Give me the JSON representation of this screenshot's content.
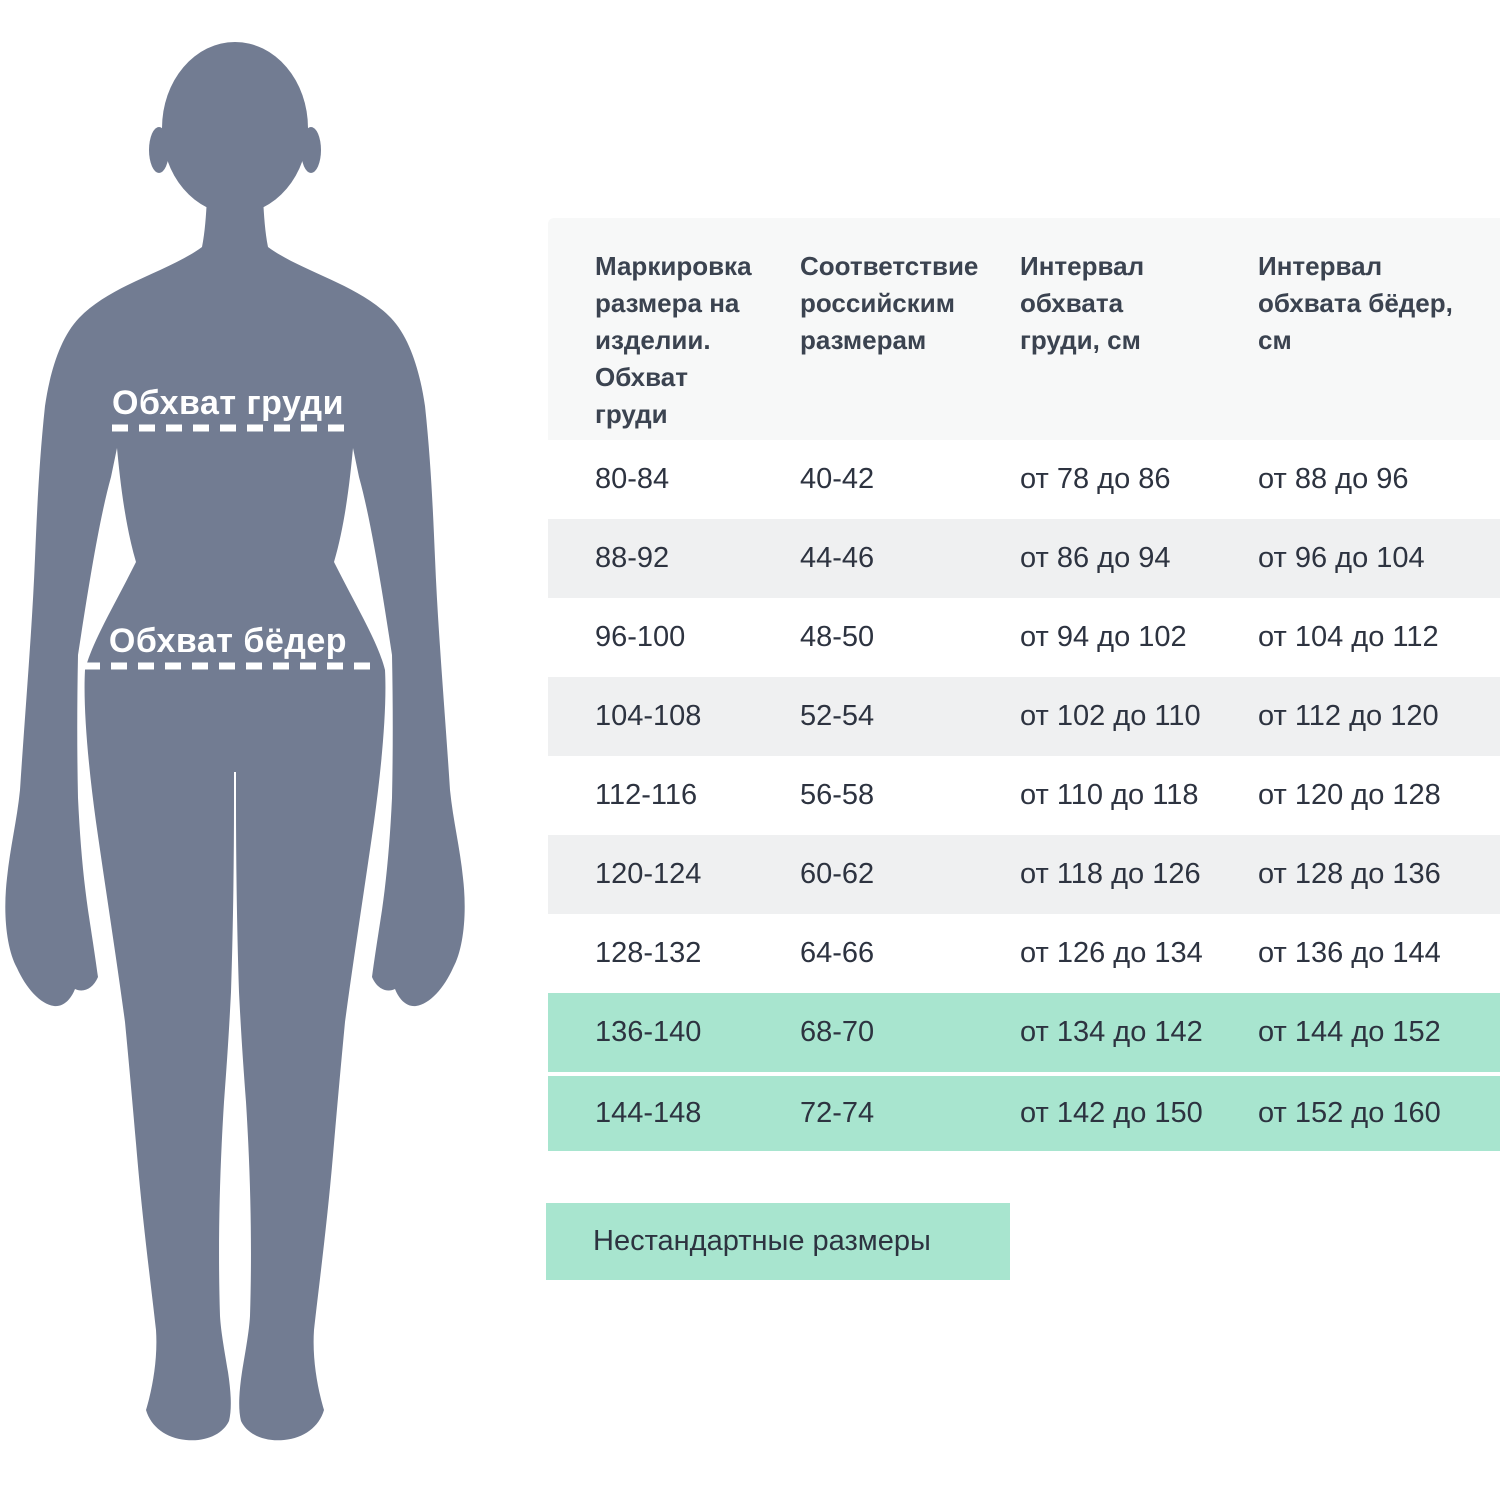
{
  "figure": {
    "chest_label": "Обхват груди",
    "hips_label": "Обхват бёдер"
  },
  "table": {
    "headers": [
      "Маркировка размера на изделии. Обхват груди",
      "Соответствие российским размерам",
      "Интервал обхвата груди, см",
      "Интервал обхвата бёдер, см"
    ],
    "rows": [
      {
        "marking": "80-84",
        "russian": "40-42",
        "chest": "от 78 до 86",
        "hips": "от 88 до 96",
        "highlight": false
      },
      {
        "marking": "88-92",
        "russian": "44-46",
        "chest": "от 86 до 94",
        "hips": "от 96 до 104",
        "highlight": false
      },
      {
        "marking": "96-100",
        "russian": "48-50",
        "chest": "от 94 до 102",
        "hips": "от 104 до 112",
        "highlight": false
      },
      {
        "marking": "104-108",
        "russian": "52-54",
        "chest": "от 102 до 110",
        "hips": "от 112 до 120",
        "highlight": false
      },
      {
        "marking": "112-116",
        "russian": "56-58",
        "chest": "от 110 до 118",
        "hips": "от 120 до 128",
        "highlight": false
      },
      {
        "marking": "120-124",
        "russian": "60-62",
        "chest": "от 118 до 126",
        "hips": "от 128 до 136",
        "highlight": false
      },
      {
        "marking": "128-132",
        "russian": "64-66",
        "chest": "от 126 до 134",
        "hips": "от 136 до 144",
        "highlight": false
      },
      {
        "marking": "136-140",
        "russian": "68-70",
        "chest": "от 134 до 142",
        "hips": "от 144 до 152",
        "highlight": true
      },
      {
        "marking": "144-148",
        "russian": "72-74",
        "chest": "от 142 до 150",
        "hips": "от 152 до 160",
        "highlight": true
      }
    ]
  },
  "legend": {
    "label": "Нестандартные размеры"
  },
  "colors": {
    "body_color": "#727c92",
    "stripe": "#eff0f1",
    "header_bg": "#f7f8f8",
    "highlight": "#a8e5cf",
    "text": "#2d3340",
    "header_text": "#3b4350"
  }
}
